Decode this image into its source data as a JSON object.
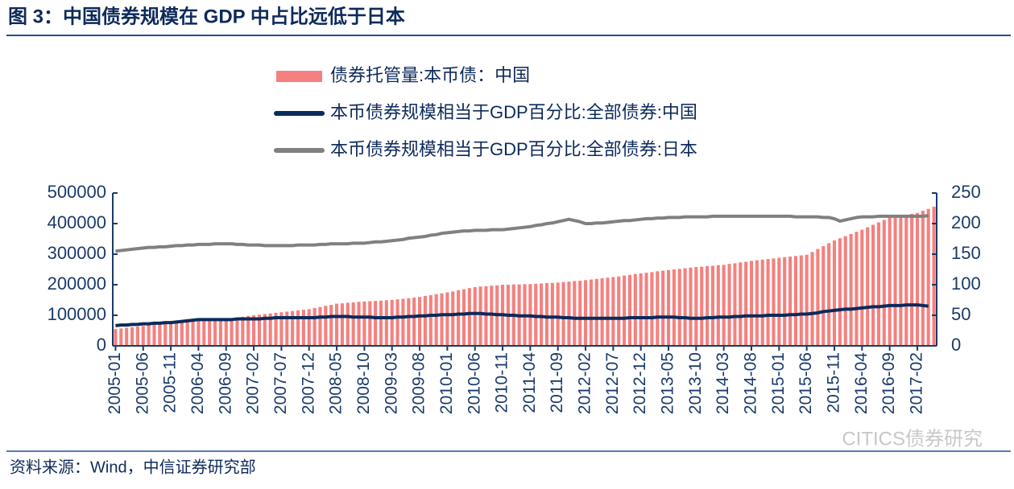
{
  "header": {
    "title": "图 3：中国债券规模在 GDP 中占比远低于日本"
  },
  "footer": {
    "source": "资料来源：Wind，中信证券研究部",
    "watermark": "CITICS债券研究"
  },
  "chart_data": {
    "type": "bar",
    "categories": [
      "2005-01",
      null,
      null,
      null,
      null,
      "2005-06",
      null,
      null,
      null,
      null,
      "2005-11",
      null,
      null,
      null,
      null,
      "2006-04",
      null,
      null,
      null,
      null,
      "2006-09",
      null,
      null,
      null,
      null,
      "2007-02",
      null,
      null,
      null,
      null,
      "2007-07",
      null,
      null,
      null,
      null,
      "2007-12",
      null,
      null,
      null,
      null,
      "2008-05",
      null,
      null,
      null,
      null,
      "2008-10",
      null,
      null,
      null,
      null,
      "2009-03",
      null,
      null,
      null,
      null,
      "2009-08",
      null,
      null,
      null,
      null,
      "2010-01",
      null,
      null,
      null,
      null,
      "2010-06",
      null,
      null,
      null,
      null,
      "2010-11",
      null,
      null,
      null,
      null,
      "2011-04",
      null,
      null,
      null,
      null,
      "2011-09",
      null,
      null,
      null,
      null,
      "2012-02",
      null,
      null,
      null,
      null,
      "2012-07",
      null,
      null,
      null,
      null,
      "2012-12",
      null,
      null,
      null,
      null,
      "2013-05",
      null,
      null,
      null,
      null,
      "2013-10",
      null,
      null,
      null,
      null,
      "2014-03",
      null,
      null,
      null,
      null,
      "2014-08",
      null,
      null,
      null,
      null,
      "2015-01",
      null,
      null,
      null,
      null,
      "2015-06",
      null,
      null,
      null,
      null,
      "2015-11",
      null,
      null,
      null,
      null,
      "2016-04",
      null,
      null,
      null,
      null,
      "2016-09",
      null,
      null,
      null,
      null,
      "2017-02",
      null,
      null,
      null
    ],
    "series": [
      {
        "name": "债券托管量:本币债：中国",
        "type": "bar",
        "color": "#f4817f",
        "values": [
          55000,
          57000,
          59000,
          61000,
          63000,
          65000,
          67000,
          69000,
          71000,
          73000,
          75000,
          76000,
          78000,
          79000,
          81000,
          82000,
          83000,
          84000,
          86000,
          87000,
          88000,
          90000,
          93000,
          95000,
          98000,
          100000,
          102000,
          104000,
          106000,
          108000,
          110000,
          112000,
          114000,
          116000,
          118000,
          120000,
          124000,
          127000,
          131000,
          134000,
          138000,
          139000,
          141000,
          142000,
          144000,
          145000,
          146000,
          147000,
          148000,
          149000,
          150000,
          152000,
          154000,
          156000,
          158000,
          160000,
          163000,
          166000,
          169000,
          172000,
          175000,
          178000,
          182000,
          185000,
          189000,
          192000,
          194000,
          195000,
          197000,
          198000,
          200000,
          200000,
          201000,
          201000,
          202000,
          202000,
          203000,
          204000,
          205000,
          206000,
          207000,
          209000,
          210000,
          212000,
          213000,
          215000,
          217000,
          219000,
          221000,
          223000,
          225000,
          227000,
          230000,
          232000,
          235000,
          237000,
          239000,
          241000,
          244000,
          246000,
          248000,
          250000,
          252000,
          254000,
          256000,
          258000,
          259000,
          261000,
          262000,
          264000,
          265000,
          268000,
          270000,
          273000,
          275000,
          278000,
          280000,
          282000,
          284000,
          286000,
          288000,
          290000,
          292000,
          294000,
          296000,
          298000,
          307000,
          317000,
          326000,
          336000,
          345000,
          352000,
          359000,
          366000,
          373000,
          380000,
          388000,
          396000,
          404000,
          412000,
          420000,
          423000,
          426000,
          429000,
          432000,
          435000,
          442000,
          448000,
          455000
        ]
      },
      {
        "name": "本币债券规模相当于GDP百分比:全部债券:中国",
        "type": "line",
        "axis": "y2",
        "color": "#0b2a5c",
        "values": [
          33,
          34,
          34,
          35,
          35,
          36,
          36,
          37,
          37,
          38,
          38,
          39,
          40,
          41,
          42,
          43,
          43,
          43,
          43,
          43,
          43,
          43,
          44,
          44,
          44,
          44,
          44,
          45,
          45,
          46,
          46,
          46,
          46,
          46,
          46,
          46,
          46,
          47,
          47,
          48,
          48,
          48,
          48,
          47,
          47,
          47,
          47,
          46,
          46,
          46,
          46,
          47,
          47,
          48,
          48,
          49,
          49,
          50,
          50,
          51,
          51,
          51,
          52,
          52,
          53,
          53,
          53,
          52,
          52,
          51,
          51,
          50,
          50,
          49,
          49,
          49,
          48,
          48,
          47,
          47,
          47,
          46,
          46,
          45,
          45,
          45,
          45,
          45,
          45,
          45,
          45,
          45,
          45,
          46,
          46,
          46,
          46,
          46,
          47,
          47,
          47,
          47,
          46,
          46,
          45,
          45,
          45,
          46,
          46,
          47,
          47,
          47,
          48,
          48,
          49,
          49,
          49,
          49,
          50,
          50,
          50,
          50,
          51,
          51,
          52,
          52,
          53,
          54,
          56,
          57,
          58,
          59,
          60,
          60,
          61,
          62,
          63,
          64,
          64,
          65,
          66,
          66,
          66,
          67,
          67,
          67,
          66,
          65,
          null
        ]
      },
      {
        "name": "本币债券规模相当于GDP百分比:全部债券:日本",
        "type": "line",
        "axis": "y2",
        "color": "#808080",
        "values": [
          155,
          156,
          157,
          158,
          159,
          160,
          161,
          161,
          162,
          162,
          163,
          164,
          164,
          165,
          165,
          166,
          166,
          166,
          167,
          167,
          167,
          167,
          166,
          166,
          165,
          165,
          165,
          164,
          164,
          164,
          164,
          164,
          164,
          165,
          165,
          165,
          165,
          166,
          166,
          167,
          167,
          167,
          167,
          168,
          168,
          168,
          169,
          170,
          170,
          171,
          172,
          173,
          174,
          176,
          177,
          178,
          179,
          181,
          182,
          184,
          185,
          186,
          187,
          188,
          188,
          189,
          189,
          189,
          190,
          190,
          190,
          191,
          192,
          193,
          194,
          195,
          197,
          198,
          200,
          201,
          203,
          205,
          207,
          205,
          203,
          200,
          200,
          201,
          201,
          202,
          203,
          204,
          205,
          205,
          206,
          207,
          208,
          208,
          209,
          209,
          210,
          210,
          210,
          211,
          211,
          211,
          211,
          211,
          212,
          212,
          212,
          212,
          212,
          212,
          212,
          212,
          212,
          212,
          212,
          212,
          212,
          212,
          212,
          211,
          211,
          211,
          211,
          211,
          210,
          210,
          208,
          204,
          206,
          208,
          210,
          211,
          211,
          211,
          212,
          212,
          212,
          212,
          212,
          212,
          212,
          212,
          212,
          213,
          null
        ]
      }
    ],
    "ylim": [
      0,
      500000
    ],
    "yticks": [
      0,
      100000,
      200000,
      300000,
      400000,
      500000
    ],
    "y2lim": [
      0,
      250
    ],
    "y2ticks": [
      0,
      50,
      100,
      150,
      200,
      250
    ]
  }
}
